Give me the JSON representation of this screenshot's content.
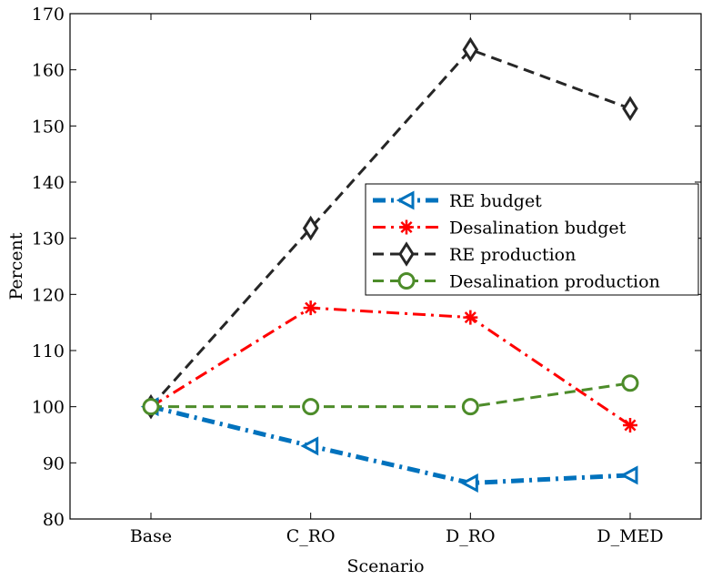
{
  "chart_data": {
    "type": "line",
    "xlabel": "Scenario",
    "ylabel": "Percent",
    "categories": [
      "Base",
      "C_RO",
      "D_RO",
      "D_MED"
    ],
    "ylim": [
      80,
      170
    ],
    "yticks": [
      80,
      90,
      100,
      110,
      120,
      130,
      140,
      150,
      160,
      170
    ],
    "grid": false,
    "legend_position": "center-right",
    "series": [
      {
        "name": "RE budget",
        "values": [
          100,
          93,
          86.4,
          87.8
        ],
        "color": "#0072BD",
        "dash": "dashdot",
        "marker": "triangle-left",
        "width": 5
      },
      {
        "name": "Desalination budget",
        "values": [
          100,
          117.6,
          115.9,
          96.7
        ],
        "color": "#FF0000",
        "dash": "dashdot",
        "marker": "asterisk",
        "width": 3
      },
      {
        "name": "RE production",
        "values": [
          100,
          131.8,
          163.6,
          153.1
        ],
        "color": "#262626",
        "dash": "dashed",
        "marker": "diamond",
        "width": 3
      },
      {
        "name": "Desalination production",
        "values": [
          100,
          100,
          100,
          104.2
        ],
        "color": "#4D8C2A",
        "dash": "dashed",
        "marker": "circle",
        "width": 3
      }
    ]
  }
}
